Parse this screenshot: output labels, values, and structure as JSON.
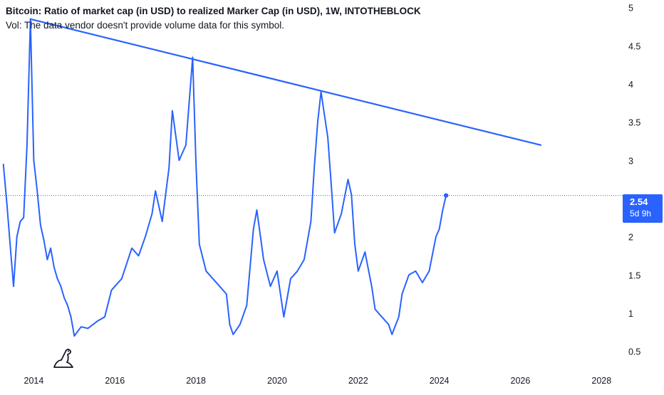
{
  "header": {
    "title": "Bitcoin: Ratio of market cap (in USD) to realized Marker Cap (in USD), 1W, INTOTHEBLOCK",
    "volume_note": "Vol: The data vendor doesn't provide volume data for this symbol."
  },
  "price_badge": {
    "value": "2.54",
    "countdown": "5d 9h"
  },
  "colors": {
    "series": "#2962ff",
    "badge": "#2962ff",
    "grid": "#f0f3fa",
    "axis_text": "#131722"
  },
  "icons": {
    "logo": "tradingview-dino-icon"
  },
  "chart_data": {
    "type": "line",
    "x_type": "date",
    "xlim": [
      "2013-03",
      "2028-06"
    ],
    "ylim": [
      0.3,
      5.1
    ],
    "grid": false,
    "x_ticks": [
      "2014",
      "2016",
      "2018",
      "2020",
      "2022",
      "2024",
      "2026",
      "2028"
    ],
    "y_ticks": [
      "0.5",
      "1",
      "1.5",
      "2",
      "2.5",
      "3",
      "3.5",
      "4",
      "4.5",
      "5"
    ],
    "last_value": 2.54,
    "series": [
      {
        "values": [
          [
            "2013-04",
            2.95
          ],
          [
            "2013-05",
            2.45
          ],
          [
            "2013-06",
            1.9
          ],
          [
            "2013-07",
            1.35
          ],
          [
            "2013-08",
            2.0
          ],
          [
            "2013-09",
            2.2
          ],
          [
            "2013-10",
            2.25
          ],
          [
            "2013-11",
            3.2
          ],
          [
            "2013-12",
            4.85
          ],
          [
            "2014-01",
            3.0
          ],
          [
            "2014-02",
            2.6
          ],
          [
            "2014-03",
            2.15
          ],
          [
            "2014-04",
            1.95
          ],
          [
            "2014-05",
            1.7
          ],
          [
            "2014-06",
            1.85
          ],
          [
            "2014-07",
            1.6
          ],
          [
            "2014-08",
            1.45
          ],
          [
            "2014-09",
            1.35
          ],
          [
            "2014-10",
            1.2
          ],
          [
            "2014-11",
            1.1
          ],
          [
            "2014-12",
            0.95
          ],
          [
            "2015-01",
            0.7
          ],
          [
            "2015-03",
            0.82
          ],
          [
            "2015-05",
            0.8
          ],
          [
            "2015-08",
            0.9
          ],
          [
            "2015-10",
            0.95
          ],
          [
            "2015-12",
            1.3
          ],
          [
            "2016-03",
            1.45
          ],
          [
            "2016-06",
            1.85
          ],
          [
            "2016-08",
            1.75
          ],
          [
            "2016-10",
            2.0
          ],
          [
            "2016-12",
            2.3
          ],
          [
            "2017-01",
            2.6
          ],
          [
            "2017-03",
            2.2
          ],
          [
            "2017-05",
            2.9
          ],
          [
            "2017-06",
            3.65
          ],
          [
            "2017-08",
            3.0
          ],
          [
            "2017-10",
            3.2
          ],
          [
            "2017-12",
            4.35
          ],
          [
            "2018-01",
            2.95
          ],
          [
            "2018-02",
            1.9
          ],
          [
            "2018-04",
            1.55
          ],
          [
            "2018-06",
            1.45
          ],
          [
            "2018-08",
            1.35
          ],
          [
            "2018-10",
            1.25
          ],
          [
            "2018-11",
            0.85
          ],
          [
            "2018-12",
            0.72
          ],
          [
            "2019-02",
            0.85
          ],
          [
            "2019-04",
            1.1
          ],
          [
            "2019-06",
            2.1
          ],
          [
            "2019-07",
            2.35
          ],
          [
            "2019-09",
            1.7
          ],
          [
            "2019-11",
            1.35
          ],
          [
            "2020-01",
            1.55
          ],
          [
            "2020-03",
            0.95
          ],
          [
            "2020-05",
            1.45
          ],
          [
            "2020-07",
            1.55
          ],
          [
            "2020-09",
            1.7
          ],
          [
            "2020-11",
            2.2
          ],
          [
            "2020-12",
            2.9
          ],
          [
            "2021-01",
            3.5
          ],
          [
            "2021-02",
            3.9
          ],
          [
            "2021-03",
            3.6
          ],
          [
            "2021-04",
            3.3
          ],
          [
            "2021-05",
            2.7
          ],
          [
            "2021-06",
            2.05
          ],
          [
            "2021-08",
            2.3
          ],
          [
            "2021-10",
            2.75
          ],
          [
            "2021-11",
            2.55
          ],
          [
            "2021-12",
            1.9
          ],
          [
            "2022-01",
            1.55
          ],
          [
            "2022-03",
            1.8
          ],
          [
            "2022-05",
            1.35
          ],
          [
            "2022-06",
            1.05
          ],
          [
            "2022-08",
            0.95
          ],
          [
            "2022-10",
            0.85
          ],
          [
            "2022-11",
            0.72
          ],
          [
            "2023-01",
            0.95
          ],
          [
            "2023-02",
            1.25
          ],
          [
            "2023-04",
            1.5
          ],
          [
            "2023-06",
            1.55
          ],
          [
            "2023-08",
            1.4
          ],
          [
            "2023-10",
            1.55
          ],
          [
            "2023-12",
            2.0
          ],
          [
            "2024-01",
            2.1
          ],
          [
            "2024-02",
            2.35
          ],
          [
            "2024-03",
            2.54
          ]
        ]
      }
    ],
    "trendline": {
      "start": [
        "2013-12",
        4.85
      ],
      "end": [
        "2026-07",
        3.2
      ]
    }
  }
}
